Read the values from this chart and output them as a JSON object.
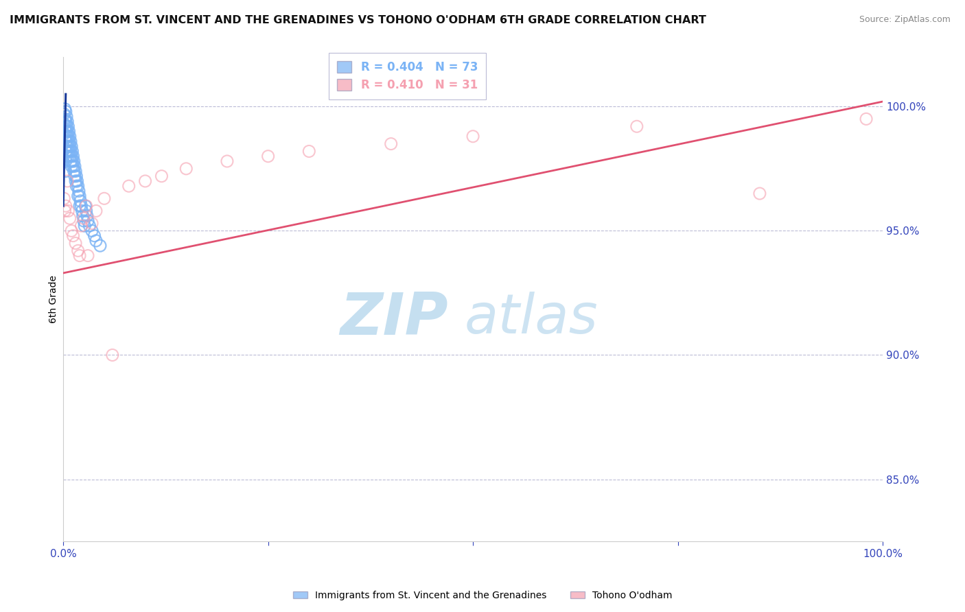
{
  "title": "IMMIGRANTS FROM ST. VINCENT AND THE GRENADINES VS TOHONO O'ODHAM 6TH GRADE CORRELATION CHART",
  "source": "Source: ZipAtlas.com",
  "ylabel": "6th Grade",
  "yticks": [
    0.85,
    0.9,
    0.95,
    1.0
  ],
  "ytick_labels": [
    "85.0%",
    "90.0%",
    "95.0%",
    "100.0%"
  ],
  "xlim": [
    0.0,
    1.0
  ],
  "ylim": [
    0.825,
    1.02
  ],
  "blue_R": 0.404,
  "blue_N": 73,
  "pink_R": 0.41,
  "pink_N": 31,
  "blue_color": "#7ab3f5",
  "pink_color": "#f5a0b0",
  "blue_line_color": "#1a3a99",
  "pink_line_color": "#e05070",
  "legend_blue_label": "Immigrants from St. Vincent and the Grenadines",
  "legend_pink_label": "Tohono O'odham",
  "blue_scatter_x": [
    0.001,
    0.001,
    0.001,
    0.002,
    0.002,
    0.002,
    0.002,
    0.002,
    0.003,
    0.003,
    0.003,
    0.003,
    0.003,
    0.003,
    0.003,
    0.004,
    0.004,
    0.004,
    0.004,
    0.004,
    0.005,
    0.005,
    0.005,
    0.005,
    0.006,
    0.006,
    0.006,
    0.006,
    0.007,
    0.007,
    0.007,
    0.008,
    0.008,
    0.008,
    0.009,
    0.009,
    0.009,
    0.01,
    0.01,
    0.01,
    0.011,
    0.011,
    0.012,
    0.012,
    0.013,
    0.013,
    0.014,
    0.014,
    0.015,
    0.015,
    0.016,
    0.016,
    0.017,
    0.018,
    0.018,
    0.019,
    0.02,
    0.02,
    0.021,
    0.022,
    0.023,
    0.024,
    0.025,
    0.026,
    0.027,
    0.028,
    0.029,
    0.03,
    0.032,
    0.035,
    0.038,
    0.04,
    0.045
  ],
  "blue_scatter_y": [
    0.997,
    0.993,
    0.989,
    0.999,
    0.995,
    0.991,
    0.987,
    0.983,
    0.998,
    0.994,
    0.99,
    0.986,
    0.982,
    0.978,
    0.974,
    0.996,
    0.992,
    0.988,
    0.984,
    0.98,
    0.994,
    0.99,
    0.986,
    0.982,
    0.992,
    0.988,
    0.984,
    0.98,
    0.99,
    0.986,
    0.982,
    0.988,
    0.984,
    0.98,
    0.986,
    0.982,
    0.978,
    0.984,
    0.98,
    0.976,
    0.982,
    0.978,
    0.98,
    0.976,
    0.978,
    0.974,
    0.976,
    0.972,
    0.974,
    0.97,
    0.972,
    0.968,
    0.97,
    0.968,
    0.964,
    0.966,
    0.964,
    0.96,
    0.962,
    0.96,
    0.958,
    0.956,
    0.954,
    0.952,
    0.96,
    0.958,
    0.956,
    0.954,
    0.952,
    0.95,
    0.948,
    0.946,
    0.944
  ],
  "pink_scatter_x": [
    0.001,
    0.002,
    0.003,
    0.005,
    0.006,
    0.008,
    0.01,
    0.012,
    0.015,
    0.018,
    0.02,
    0.022,
    0.025,
    0.028,
    0.03,
    0.035,
    0.04,
    0.05,
    0.06,
    0.08,
    0.1,
    0.12,
    0.15,
    0.2,
    0.25,
    0.3,
    0.4,
    0.5,
    0.7,
    0.85,
    0.98
  ],
  "pink_scatter_y": [
    0.963,
    0.958,
    0.96,
    0.97,
    0.958,
    0.955,
    0.95,
    0.948,
    0.945,
    0.942,
    0.94,
    0.952,
    0.955,
    0.96,
    0.94,
    0.953,
    0.958,
    0.963,
    0.9,
    0.968,
    0.97,
    0.972,
    0.975,
    0.978,
    0.98,
    0.982,
    0.985,
    0.988,
    0.992,
    0.965,
    0.995
  ],
  "blue_line_x0": 0.0,
  "blue_line_y0": 0.96,
  "blue_line_x1": 0.003,
  "blue_line_y1": 1.005,
  "pink_line_x0": 0.0,
  "pink_line_y0": 0.933,
  "pink_line_x1": 1.0,
  "pink_line_y1": 1.002
}
